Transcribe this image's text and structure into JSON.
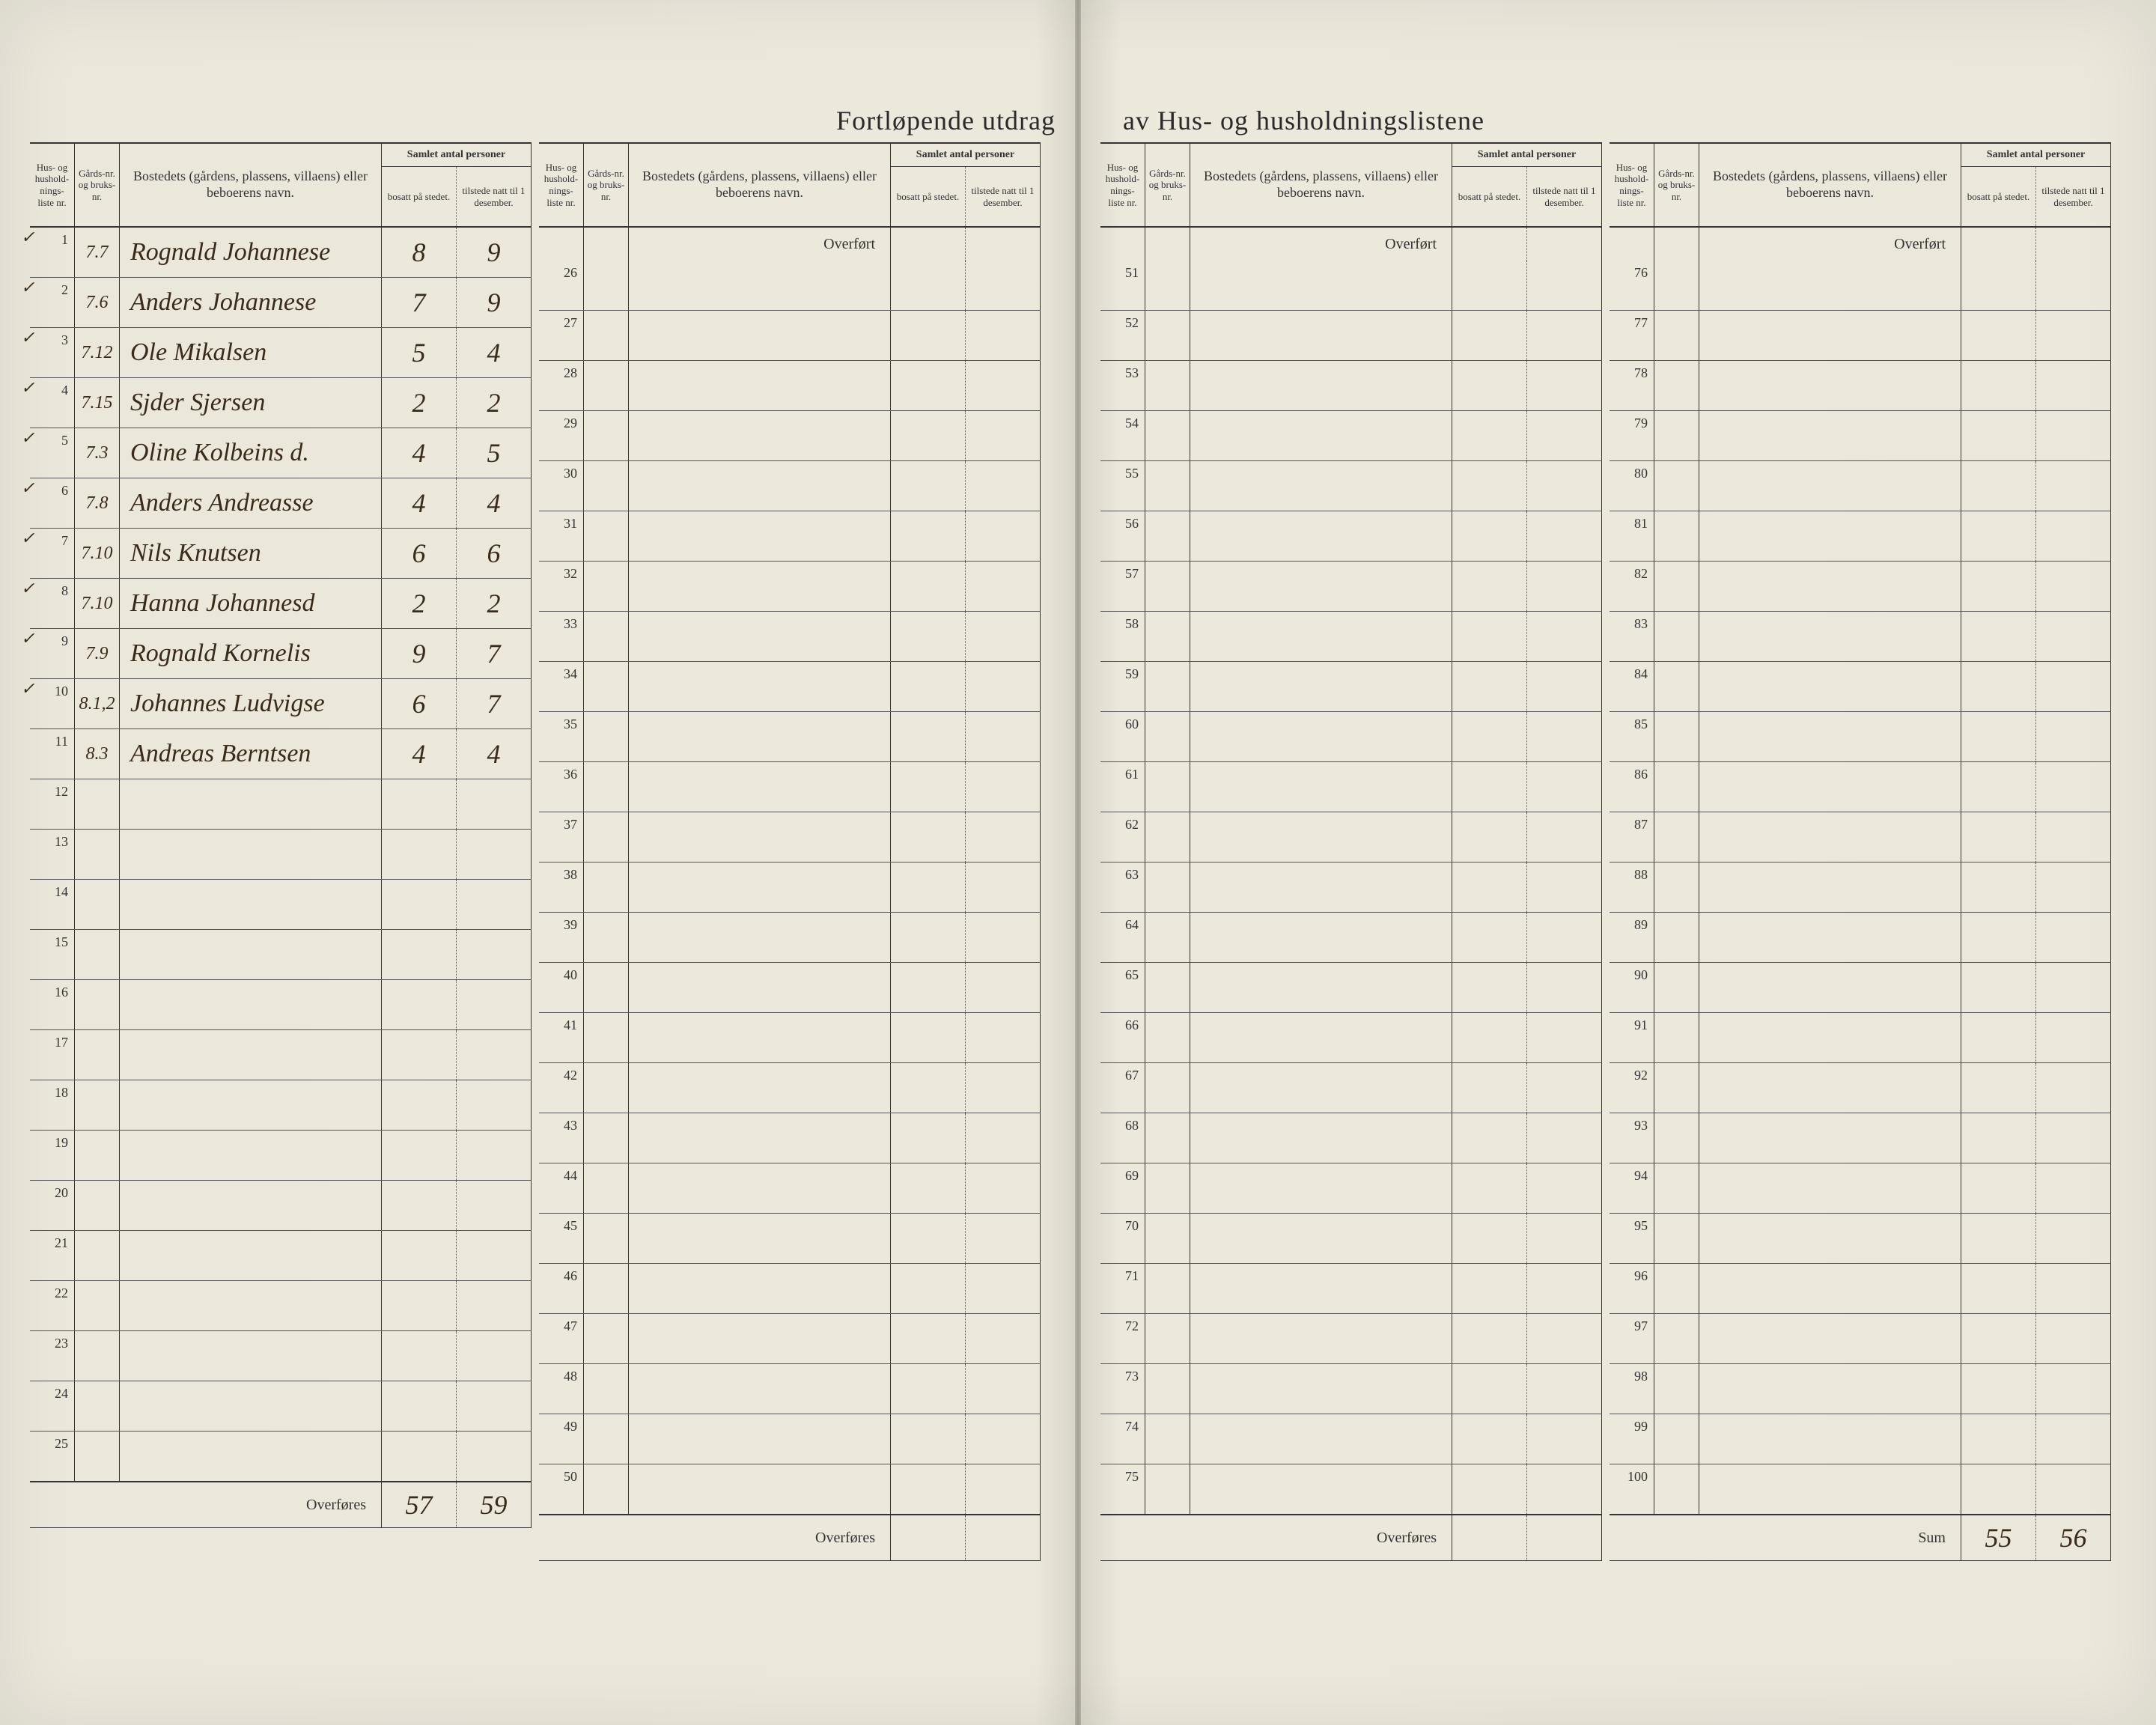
{
  "title_left": "Fortløpende utdrag",
  "title_right": "av Hus- og husholdningslistene",
  "header": {
    "listenr": "Hus- og hushold-nings-liste nr.",
    "gardsnr": "Gårds-nr. og bruks-nr.",
    "bosted": "Bostedets (gårdens, plassens, villaens) eller beboerens navn.",
    "personer_top": "Samlet antal personer",
    "bosat": "bosatt på stedet.",
    "tilstede": "tilstede natt til 1 desember."
  },
  "overfort": "Overført",
  "overfores": "Overføres",
  "sum_label": "Sum",
  "section1": {
    "rows": [
      {
        "n": "1",
        "check": "✓",
        "gnr": "7.7",
        "navn": "Rognald Johannese",
        "b": "8",
        "t": "9"
      },
      {
        "n": "2",
        "check": "✓",
        "gnr": "7.6",
        "navn": "Anders Johannese",
        "b": "7",
        "t": "9"
      },
      {
        "n": "3",
        "check": "✓",
        "gnr": "7.12",
        "navn": "Ole Mikalsen",
        "b": "5",
        "t": "4"
      },
      {
        "n": "4",
        "check": "✓",
        "gnr": "7.15",
        "navn": "Sjder Sjersen",
        "b": "2",
        "t": "2"
      },
      {
        "n": "5",
        "check": "✓",
        "gnr": "7.3",
        "navn": "Oline Kolbeins d.",
        "b": "4",
        "t": "5"
      },
      {
        "n": "6",
        "check": "✓",
        "gnr": "7.8",
        "navn": "Anders Andreasse",
        "b": "4",
        "t": "4"
      },
      {
        "n": "7",
        "check": "✓",
        "gnr": "7.10",
        "navn": "Nils Knutsen",
        "b": "6",
        "t": "6"
      },
      {
        "n": "8",
        "check": "✓",
        "gnr": "7.10",
        "navn": "Hanna Johannesd",
        "b": "2",
        "t": "2"
      },
      {
        "n": "9",
        "check": "✓",
        "gnr": "7.9",
        "navn": "Rognald Kornelis",
        "b": "9",
        "t": "7"
      },
      {
        "n": "10",
        "check": "✓",
        "gnr": "8.1,2",
        "navn": "Johannes Ludvigse",
        "b": "6",
        "t": "7"
      },
      {
        "n": "11",
        "check": "",
        "gnr": "8.3",
        "navn": "Andreas Berntsen",
        "b": "4",
        "t": "4"
      },
      {
        "n": "12"
      },
      {
        "n": "13"
      },
      {
        "n": "14"
      },
      {
        "n": "15"
      },
      {
        "n": "16"
      },
      {
        "n": "17"
      },
      {
        "n": "18"
      },
      {
        "n": "19"
      },
      {
        "n": "20"
      },
      {
        "n": "21"
      },
      {
        "n": "22"
      },
      {
        "n": "23"
      },
      {
        "n": "24"
      },
      {
        "n": "25"
      }
    ],
    "footer": {
      "b": "57",
      "t": "59"
    }
  },
  "section2": {
    "rows": [
      {
        "n": "26"
      },
      {
        "n": "27"
      },
      {
        "n": "28"
      },
      {
        "n": "29"
      },
      {
        "n": "30"
      },
      {
        "n": "31"
      },
      {
        "n": "32"
      },
      {
        "n": "33"
      },
      {
        "n": "34"
      },
      {
        "n": "35"
      },
      {
        "n": "36"
      },
      {
        "n": "37"
      },
      {
        "n": "38"
      },
      {
        "n": "39"
      },
      {
        "n": "40"
      },
      {
        "n": "41"
      },
      {
        "n": "42"
      },
      {
        "n": "43"
      },
      {
        "n": "44"
      },
      {
        "n": "45"
      },
      {
        "n": "46"
      },
      {
        "n": "47"
      },
      {
        "n": "48"
      },
      {
        "n": "49"
      },
      {
        "n": "50"
      }
    ]
  },
  "section3": {
    "rows": [
      {
        "n": "51"
      },
      {
        "n": "52"
      },
      {
        "n": "53"
      },
      {
        "n": "54"
      },
      {
        "n": "55"
      },
      {
        "n": "56"
      },
      {
        "n": "57"
      },
      {
        "n": "58"
      },
      {
        "n": "59"
      },
      {
        "n": "60"
      },
      {
        "n": "61"
      },
      {
        "n": "62"
      },
      {
        "n": "63"
      },
      {
        "n": "64"
      },
      {
        "n": "65"
      },
      {
        "n": "66"
      },
      {
        "n": "67"
      },
      {
        "n": "68"
      },
      {
        "n": "69"
      },
      {
        "n": "70"
      },
      {
        "n": "71"
      },
      {
        "n": "72"
      },
      {
        "n": "73"
      },
      {
        "n": "74"
      },
      {
        "n": "75"
      }
    ]
  },
  "section4": {
    "rows": [
      {
        "n": "76"
      },
      {
        "n": "77"
      },
      {
        "n": "78"
      },
      {
        "n": "79"
      },
      {
        "n": "80"
      },
      {
        "n": "81"
      },
      {
        "n": "82"
      },
      {
        "n": "83"
      },
      {
        "n": "84"
      },
      {
        "n": "85"
      },
      {
        "n": "86"
      },
      {
        "n": "87"
      },
      {
        "n": "88"
      },
      {
        "n": "89"
      },
      {
        "n": "90"
      },
      {
        "n": "91"
      },
      {
        "n": "92"
      },
      {
        "n": "93"
      },
      {
        "n": "94"
      },
      {
        "n": "95"
      },
      {
        "n": "96"
      },
      {
        "n": "97"
      },
      {
        "n": "98"
      },
      {
        "n": "99"
      },
      {
        "n": "100"
      }
    ],
    "footer": {
      "b": "55",
      "t": "56"
    }
  },
  "colors": {
    "paper": "#ebe7db",
    "ink": "#333333",
    "handwriting": "#3a2a1a"
  }
}
